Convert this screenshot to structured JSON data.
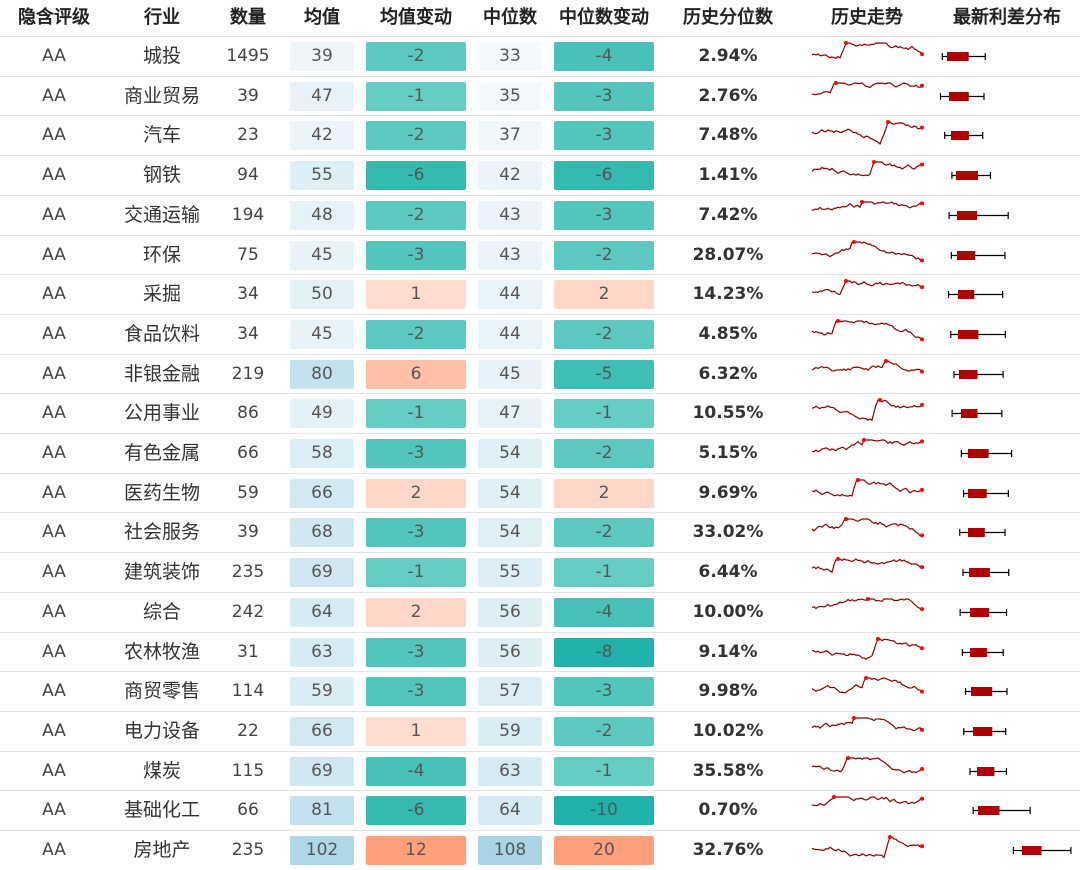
{
  "columns": [
    "隐含评级",
    "行业",
    "数量",
    "均值",
    "均值变动",
    "中位数",
    "中位数变动",
    "历史分位数",
    "历史走势",
    "最新利差分布"
  ],
  "rows": [
    {
      "rating": "AA",
      "industry": "城投",
      "count": "1495",
      "mean": "39",
      "mean_chg": "-2",
      "median": "33",
      "median_chg": "-4",
      "pct": "2.94%"
    },
    {
      "rating": "AA",
      "industry": "商业贸易",
      "count": "39",
      "mean": "47",
      "mean_chg": "-1",
      "median": "35",
      "median_chg": "-3",
      "pct": "2.76%"
    },
    {
      "rating": "AA",
      "industry": "汽车",
      "count": "23",
      "mean": "42",
      "mean_chg": "-2",
      "median": "37",
      "median_chg": "-3",
      "pct": "7.48%"
    },
    {
      "rating": "AA",
      "industry": "钢铁",
      "count": "94",
      "mean": "55",
      "mean_chg": "-6",
      "median": "42",
      "median_chg": "-6",
      "pct": "1.41%"
    },
    {
      "rating": "AA",
      "industry": "交通运输",
      "count": "194",
      "mean": "48",
      "mean_chg": "-2",
      "median": "43",
      "median_chg": "-3",
      "pct": "7.42%"
    },
    {
      "rating": "AA",
      "industry": "环保",
      "count": "75",
      "mean": "45",
      "mean_chg": "-3",
      "median": "43",
      "median_chg": "-2",
      "pct": "28.07%"
    },
    {
      "rating": "AA",
      "industry": "采掘",
      "count": "34",
      "mean": "50",
      "mean_chg": "1",
      "median": "44",
      "median_chg": "2",
      "pct": "14.23%"
    },
    {
      "rating": "AA",
      "industry": "食品饮料",
      "count": "34",
      "mean": "45",
      "mean_chg": "-2",
      "median": "44",
      "median_chg": "-2",
      "pct": "4.85%"
    },
    {
      "rating": "AA",
      "industry": "非银金融",
      "count": "219",
      "mean": "80",
      "mean_chg": "6",
      "median": "45",
      "median_chg": "-5",
      "pct": "6.32%"
    },
    {
      "rating": "AA",
      "industry": "公用事业",
      "count": "86",
      "mean": "49",
      "mean_chg": "-1",
      "median": "47",
      "median_chg": "-1",
      "pct": "10.55%"
    },
    {
      "rating": "AA",
      "industry": "有色金属",
      "count": "66",
      "mean": "58",
      "mean_chg": "-3",
      "median": "54",
      "median_chg": "-2",
      "pct": "5.15%"
    },
    {
      "rating": "AA",
      "industry": "医药生物",
      "count": "59",
      "mean": "66",
      "mean_chg": "2",
      "median": "54",
      "median_chg": "2",
      "pct": "9.69%"
    },
    {
      "rating": "AA",
      "industry": "社会服务",
      "count": "39",
      "mean": "68",
      "mean_chg": "-3",
      "median": "54",
      "median_chg": "-2",
      "pct": "33.02%"
    },
    {
      "rating": "AA",
      "industry": "建筑装饰",
      "count": "235",
      "mean": "69",
      "mean_chg": "-1",
      "median": "55",
      "median_chg": "-1",
      "pct": "6.44%"
    },
    {
      "rating": "AA",
      "industry": "综合",
      "count": "242",
      "mean": "64",
      "mean_chg": "2",
      "median": "56",
      "median_chg": "-4",
      "pct": "10.00%"
    },
    {
      "rating": "AA",
      "industry": "农林牧渔",
      "count": "31",
      "mean": "63",
      "mean_chg": "-3",
      "median": "56",
      "median_chg": "-8",
      "pct": "9.14%"
    },
    {
      "rating": "AA",
      "industry": "商贸零售",
      "count": "114",
      "mean": "59",
      "mean_chg": "-3",
      "median": "57",
      "median_chg": "-3",
      "pct": "9.98%"
    },
    {
      "rating": "AA",
      "industry": "电力设备",
      "count": "22",
      "mean": "66",
      "mean_chg": "1",
      "median": "59",
      "median_chg": "-2",
      "pct": "10.02%"
    },
    {
      "rating": "AA",
      "industry": "煤炭",
      "count": "115",
      "mean": "69",
      "mean_chg": "-4",
      "median": "63",
      "median_chg": "-1",
      "pct": "35.58%"
    },
    {
      "rating": "AA",
      "industry": "基础化工",
      "count": "66",
      "mean": "81",
      "mean_chg": "-6",
      "median": "64",
      "median_chg": "-10",
      "pct": "0.70%"
    },
    {
      "rating": "AA",
      "industry": "房地产",
      "count": "235",
      "mean": "102",
      "mean_chg": "12",
      "median": "108",
      "median_chg": "20",
      "pct": "32.76%"
    }
  ],
  "colors": {
    "negative_strong": "#20b2aa",
    "negative_light": "#66cdc4",
    "positive_strong": "#ffa07a",
    "positive_light": "#ffdccf",
    "value_dark": "#a8d4e6",
    "value_light": "#f4f9fc",
    "sparkline": "#8b0000",
    "sparkline_marker": "#ff0000",
    "boxplot_fill": "#b00000",
    "boxplot_whisker": "#000000"
  },
  "icons": [
    "sparkline-chart",
    "boxplot-chart"
  ]
}
